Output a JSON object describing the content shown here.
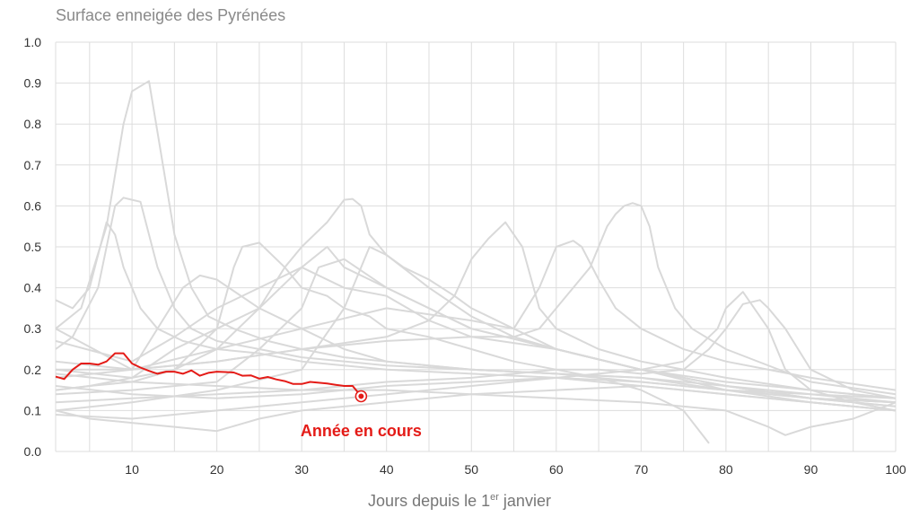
{
  "chart_data": {
    "type": "line",
    "title": "Surface enneigée des Pyrénées",
    "xlabel_parts": [
      "Jours depuis le 1",
      "er",
      " janvier"
    ],
    "x_ticks": [
      10,
      20,
      30,
      40,
      50,
      60,
      70,
      80,
      90,
      100
    ],
    "y_ticks": [
      "0.0",
      "0.1",
      "0.2",
      "0.3",
      "0.4",
      "0.5",
      "0.6",
      "0.7",
      "0.8",
      "0.9",
      "1.0"
    ],
    "xlim": [
      1,
      100
    ],
    "ylim": [
      0,
      1.0
    ],
    "grid": true,
    "colors": {
      "history": "#d9d9d9",
      "current": "#e41b17",
      "grid": "#dddddd"
    },
    "annotation": {
      "text": "Année en cours",
      "x": 37,
      "y": 0.05
    },
    "current_year": {
      "x": [
        1,
        2,
        3,
        4,
        5,
        6,
        7,
        8,
        9,
        10,
        11,
        12,
        13,
        14,
        15,
        16,
        17,
        18,
        19,
        20,
        21,
        22,
        23,
        24,
        25,
        26,
        27,
        28,
        29,
        30,
        31,
        32,
        33,
        34,
        35,
        36,
        37
      ],
      "y": [
        0.183,
        0.177,
        0.2,
        0.215,
        0.215,
        0.212,
        0.22,
        0.24,
        0.24,
        0.215,
        0.205,
        0.197,
        0.19,
        0.195,
        0.195,
        0.19,
        0.198,
        0.185,
        0.192,
        0.195,
        0.194,
        0.193,
        0.185,
        0.186,
        0.178,
        0.182,
        0.176,
        0.172,
        0.165,
        0.165,
        0.17,
        0.168,
        0.166,
        0.163,
        0.16,
        0.16,
        0.135
      ]
    },
    "history": [
      {
        "x": [
          1,
          4,
          7,
          9,
          10,
          12,
          13,
          15,
          17,
          19,
          22,
          26,
          30,
          35,
          40,
          50,
          60,
          70,
          80,
          90,
          100
        ],
        "y": [
          0.3,
          0.35,
          0.55,
          0.8,
          0.88,
          0.905,
          0.78,
          0.53,
          0.4,
          0.33,
          0.3,
          0.27,
          0.25,
          0.23,
          0.22,
          0.2,
          0.19,
          0.18,
          0.16,
          0.14,
          0.13
        ]
      },
      {
        "x": [
          1,
          3,
          6,
          8,
          9,
          10,
          11,
          13,
          15,
          17,
          20,
          25,
          30,
          40,
          50,
          60,
          70,
          80,
          90,
          100
        ],
        "y": [
          0.25,
          0.28,
          0.4,
          0.6,
          0.62,
          0.615,
          0.61,
          0.45,
          0.35,
          0.3,
          0.27,
          0.25,
          0.23,
          0.21,
          0.2,
          0.19,
          0.17,
          0.15,
          0.14,
          0.12
        ]
      },
      {
        "x": [
          1,
          3,
          5,
          7,
          8,
          9,
          11,
          13,
          16,
          20,
          25,
          30,
          40,
          50,
          60,
          70,
          80,
          90,
          100
        ],
        "y": [
          0.37,
          0.35,
          0.4,
          0.56,
          0.53,
          0.45,
          0.35,
          0.3,
          0.27,
          0.25,
          0.24,
          0.22,
          0.2,
          0.19,
          0.18,
          0.17,
          0.15,
          0.13,
          0.12
        ]
      },
      {
        "x": [
          1,
          5,
          10,
          15,
          20,
          25,
          28,
          30,
          33,
          35,
          36,
          37,
          38,
          40,
          45,
          50,
          55,
          60,
          70,
          80,
          90,
          100
        ],
        "y": [
          0.15,
          0.16,
          0.18,
          0.2,
          0.25,
          0.35,
          0.45,
          0.5,
          0.56,
          0.615,
          0.617,
          0.6,
          0.53,
          0.48,
          0.4,
          0.33,
          0.28,
          0.25,
          0.2,
          0.16,
          0.13,
          0.12
        ]
      },
      {
        "x": [
          1,
          10,
          20,
          30,
          40,
          45,
          48,
          50,
          52,
          54,
          56,
          58,
          60,
          65,
          70,
          80,
          90,
          100
        ],
        "y": [
          0.2,
          0.2,
          0.22,
          0.25,
          0.28,
          0.32,
          0.38,
          0.47,
          0.52,
          0.56,
          0.5,
          0.35,
          0.3,
          0.25,
          0.22,
          0.18,
          0.15,
          0.13
        ]
      },
      {
        "x": [
          1,
          10,
          20,
          30,
          40,
          50,
          55,
          58,
          60,
          62,
          64,
          66,
          67,
          68,
          69,
          70,
          71,
          72,
          74,
          76,
          80,
          90,
          100
        ],
        "y": [
          0.18,
          0.2,
          0.22,
          0.25,
          0.27,
          0.28,
          0.28,
          0.3,
          0.35,
          0.4,
          0.45,
          0.55,
          0.58,
          0.6,
          0.607,
          0.6,
          0.55,
          0.45,
          0.35,
          0.3,
          0.25,
          0.17,
          0.14
        ]
      },
      {
        "x": [
          1,
          10,
          20,
          30,
          40,
          50,
          55,
          58,
          60,
          62,
          63,
          65,
          67,
          70,
          75,
          80,
          90,
          100
        ],
        "y": [
          0.22,
          0.2,
          0.25,
          0.3,
          0.35,
          0.32,
          0.3,
          0.4,
          0.5,
          0.515,
          0.5,
          0.42,
          0.35,
          0.3,
          0.25,
          0.22,
          0.18,
          0.15
        ]
      },
      {
        "x": [
          1,
          5,
          10,
          15,
          20,
          22,
          23,
          25,
          28,
          30,
          33,
          35,
          38,
          40,
          45,
          50,
          55,
          60,
          65,
          70,
          75,
          78
        ],
        "y": [
          0.15,
          0.16,
          0.17,
          0.2,
          0.3,
          0.45,
          0.5,
          0.51,
          0.45,
          0.4,
          0.38,
          0.35,
          0.33,
          0.3,
          0.28,
          0.25,
          0.22,
          0.2,
          0.18,
          0.15,
          0.1,
          0.02
        ]
      },
      {
        "x": [
          1,
          10,
          20,
          30,
          35,
          37,
          38,
          40,
          42,
          45,
          48,
          50,
          55,
          60,
          70,
          80,
          90,
          100
        ],
        "y": [
          0.1,
          0.12,
          0.15,
          0.2,
          0.35,
          0.45,
          0.5,
          0.48,
          0.45,
          0.42,
          0.38,
          0.35,
          0.3,
          0.25,
          0.2,
          0.17,
          0.15,
          0.13
        ]
      },
      {
        "x": [
          1,
          10,
          20,
          30,
          40,
          50,
          60,
          65,
          70,
          75,
          78,
          80,
          82,
          84,
          85,
          87,
          90,
          95,
          100
        ],
        "y": [
          0.12,
          0.13,
          0.14,
          0.15,
          0.17,
          0.18,
          0.2,
          0.2,
          0.19,
          0.2,
          0.25,
          0.3,
          0.36,
          0.37,
          0.35,
          0.3,
          0.2,
          0.15,
          0.13
        ]
      },
      {
        "x": [
          1,
          10,
          20,
          30,
          40,
          50,
          60,
          70,
          75,
          78,
          79,
          80,
          82,
          85,
          87,
          90,
          95,
          100
        ],
        "y": [
          0.09,
          0.08,
          0.1,
          0.12,
          0.14,
          0.16,
          0.18,
          0.2,
          0.22,
          0.28,
          0.3,
          0.35,
          0.39,
          0.3,
          0.2,
          0.15,
          0.12,
          0.1
        ]
      },
      {
        "x": [
          1,
          10,
          15,
          20,
          25,
          30,
          33,
          35,
          40,
          45,
          50,
          60,
          70,
          80,
          90,
          100
        ],
        "y": [
          0.2,
          0.18,
          0.25,
          0.3,
          0.35,
          0.45,
          0.5,
          0.45,
          0.4,
          0.35,
          0.3,
          0.25,
          0.2,
          0.15,
          0.12,
          0.1
        ]
      },
      {
        "x": [
          1,
          10,
          15,
          20,
          25,
          30,
          35,
          40,
          45,
          50,
          60,
          70,
          80,
          90,
          100
        ],
        "y": [
          0.27,
          0.22,
          0.28,
          0.35,
          0.4,
          0.45,
          0.4,
          0.38,
          0.32,
          0.28,
          0.25,
          0.2,
          0.16,
          0.13,
          0.11
        ]
      },
      {
        "x": [
          1,
          10,
          16,
          18,
          20,
          25,
          30,
          35,
          40,
          50,
          60,
          70,
          80,
          90,
          100
        ],
        "y": [
          0.3,
          0.2,
          0.4,
          0.43,
          0.42,
          0.35,
          0.3,
          0.25,
          0.22,
          0.2,
          0.19,
          0.18,
          0.15,
          0.13,
          0.12
        ]
      },
      {
        "x": [
          1,
          10,
          20,
          25,
          30,
          32,
          35,
          40,
          45,
          50,
          60,
          70,
          80,
          90,
          100
        ],
        "y": [
          0.14,
          0.15,
          0.17,
          0.25,
          0.35,
          0.45,
          0.47,
          0.4,
          0.35,
          0.3,
          0.25,
          0.2,
          0.16,
          0.13,
          0.11
        ]
      },
      {
        "x": [
          1,
          10,
          20,
          30,
          40,
          50,
          60,
          70,
          80,
          90,
          100
        ],
        "y": [
          0.16,
          0.14,
          0.13,
          0.14,
          0.16,
          0.17,
          0.18,
          0.16,
          0.14,
          0.12,
          0.1
        ]
      },
      {
        "x": [
          1,
          5,
          10,
          15,
          20,
          25,
          30,
          40,
          50,
          60,
          70,
          80,
          90,
          100
        ],
        "y": [
          0.1,
          0.08,
          0.07,
          0.06,
          0.05,
          0.08,
          0.1,
          0.12,
          0.14,
          0.15,
          0.16,
          0.14,
          0.12,
          0.1
        ]
      },
      {
        "x": [
          1,
          10,
          20,
          30,
          40,
          50,
          60,
          70,
          80,
          85,
          87,
          90,
          95,
          100
        ],
        "y": [
          0.19,
          0.17,
          0.16,
          0.15,
          0.15,
          0.14,
          0.13,
          0.12,
          0.1,
          0.06,
          0.04,
          0.06,
          0.08,
          0.12
        ]
      }
    ]
  }
}
